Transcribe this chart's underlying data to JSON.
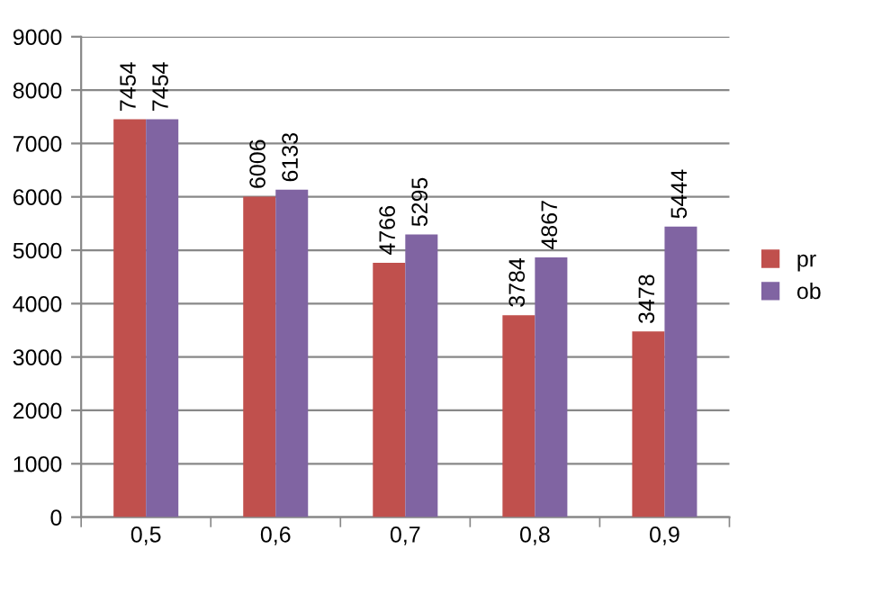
{
  "chart_data": {
    "type": "bar",
    "categories": [
      "0,5",
      "0,6",
      "0,7",
      "0,8",
      "0,9"
    ],
    "series": [
      {
        "name": "pr",
        "color": "#c0504d",
        "values": [
          7454,
          6006,
          4766,
          3784,
          3478
        ]
      },
      {
        "name": "ob",
        "color": "#8064a2",
        "values": [
          7454,
          6133,
          5295,
          4867,
          5444
        ]
      }
    ],
    "ylim": [
      0,
      9000
    ],
    "yticks": [
      0,
      1000,
      2000,
      3000,
      4000,
      5000,
      6000,
      7000,
      8000,
      9000
    ],
    "grid": "y",
    "legend": "right",
    "data_labels": true
  }
}
